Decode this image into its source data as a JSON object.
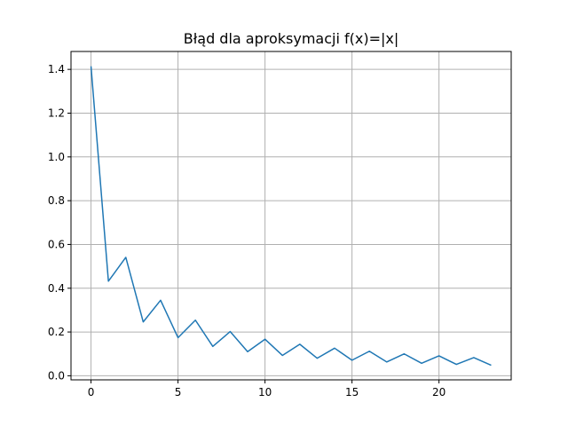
{
  "chart_data": {
    "type": "line",
    "title": "Błąd dla aproksymacji f(x)=|x|",
    "xlabel": "",
    "ylabel": "",
    "xlim": [
      -1.15,
      24.15
    ],
    "ylim": [
      -0.0187,
      1.4818
    ],
    "x_ticks": [
      0,
      5,
      10,
      15,
      20
    ],
    "y_ticks": [
      0.0,
      0.2,
      0.4,
      0.6,
      0.8,
      1.0,
      1.2,
      1.4
    ],
    "x_tick_labels": [
      "0",
      "5",
      "10",
      "15",
      "20"
    ],
    "y_tick_labels": [
      "0.0",
      "0.2",
      "0.4",
      "0.6",
      "0.8",
      "1.0",
      "1.2",
      "1.4"
    ],
    "grid": true,
    "series": [
      {
        "color": "#1f77b4",
        "x": [
          0,
          1,
          2,
          3,
          4,
          5,
          6,
          7,
          8,
          9,
          10,
          11,
          12,
          13,
          14,
          15,
          16,
          17,
          18,
          19,
          20,
          21,
          22,
          23
        ],
        "y": [
          1.414,
          0.432,
          0.541,
          0.246,
          0.345,
          0.174,
          0.254,
          0.134,
          0.202,
          0.11,
          0.167,
          0.093,
          0.144,
          0.08,
          0.126,
          0.071,
          0.112,
          0.063,
          0.1,
          0.057,
          0.091,
          0.052,
          0.083,
          0.048
        ]
      }
    ]
  }
}
